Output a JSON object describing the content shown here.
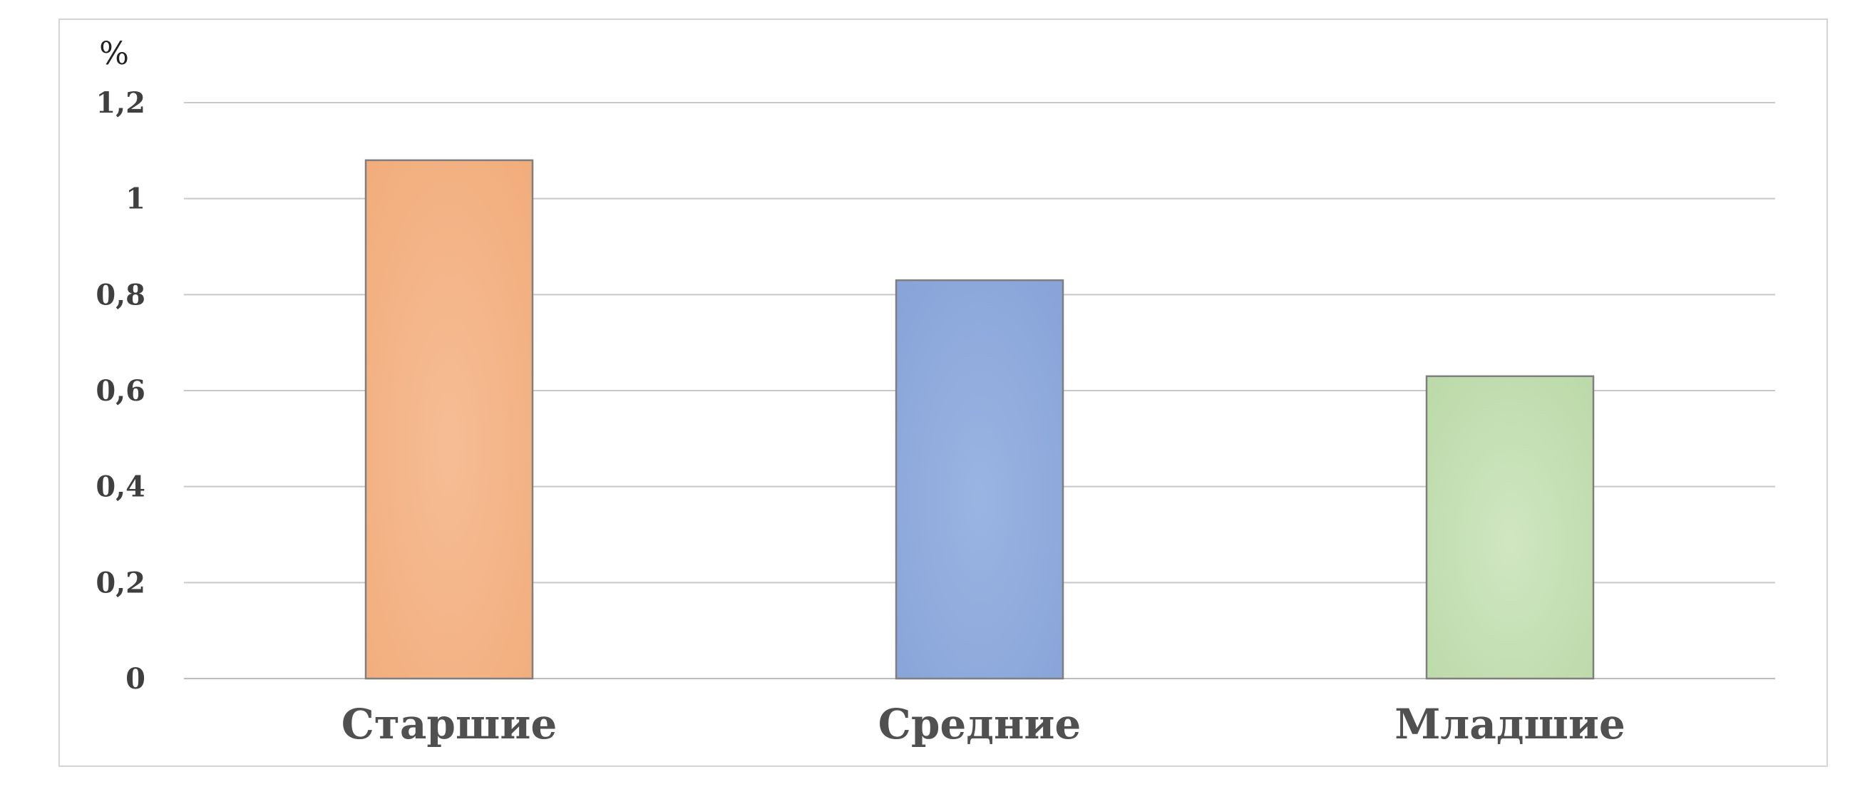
{
  "chart_data": {
    "type": "bar",
    "title": "",
    "xlabel": "",
    "ylabel": "%",
    "categories": [
      "Старшие",
      "Средние",
      "Младшие"
    ],
    "values": [
      1.08,
      0.83,
      0.63
    ],
    "ylim": [
      0,
      1.2
    ],
    "yticks": [
      "0",
      "0,2",
      "0,4",
      "0,6",
      "0,8",
      "1",
      "1,2"
    ],
    "ytick_values": [
      0,
      0.2,
      0.4,
      0.6,
      0.8,
      1.0,
      1.2
    ],
    "grid": true,
    "legend": "none",
    "bar_colors": [
      "#f4b183",
      "#8faadc",
      "#c5e0b4"
    ],
    "bar_edge_color": "#7f7f7f"
  }
}
